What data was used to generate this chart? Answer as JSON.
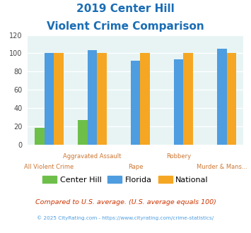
{
  "title_line1": "2019 Center Hill",
  "title_line2": "Violent Crime Comparison",
  "categories": [
    "All Violent Crime",
    "Aggravated Assault",
    "Rape",
    "Robbery",
    "Murder & Mans..."
  ],
  "center_hill": [
    18,
    27,
    0,
    0,
    0
  ],
  "florida": [
    100,
    103,
    92,
    93,
    105
  ],
  "national": [
    100,
    100,
    100,
    100,
    100
  ],
  "colors": {
    "center_hill": "#6dbf4a",
    "florida": "#4d9de0",
    "national": "#f5a623"
  },
  "ylim": [
    0,
    120
  ],
  "yticks": [
    0,
    20,
    40,
    60,
    80,
    100,
    120
  ],
  "footnote1": "Compared to U.S. average. (U.S. average equals 100)",
  "footnote2": "© 2025 CityRating.com - https://www.cityrating.com/crime-statistics/",
  "bg_color": "#e8f4f4",
  "title_color": "#1a6db5",
  "xlabel_font_color": "#cc7733",
  "bar_width": 0.22
}
